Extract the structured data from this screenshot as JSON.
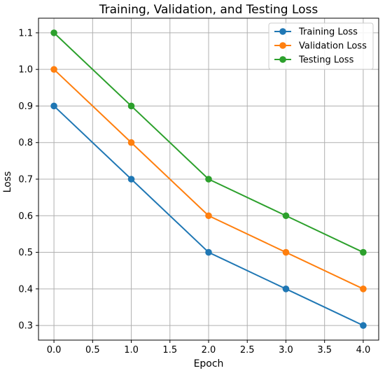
{
  "chart_data": {
    "type": "line",
    "title": "Training, Validation, and Testing Loss",
    "xlabel": "Epoch",
    "ylabel": "Loss",
    "x": [
      0,
      1,
      2,
      3,
      4
    ],
    "xlim": [
      -0.2,
      4.2
    ],
    "ylim": [
      0.26,
      1.14
    ],
    "xticks": [
      0.0,
      0.5,
      1.0,
      1.5,
      2.0,
      2.5,
      3.0,
      3.5,
      4.0
    ],
    "xtick_labels": [
      "0.0",
      "0.5",
      "1.0",
      "1.5",
      "2.0",
      "2.5",
      "3.0",
      "3.5",
      "4.0"
    ],
    "yticks": [
      0.3,
      0.4,
      0.5,
      0.6,
      0.7,
      0.8,
      0.9,
      1.0,
      1.1
    ],
    "ytick_labels": [
      "0.3",
      "0.4",
      "0.5",
      "0.6",
      "0.7",
      "0.8",
      "0.9",
      "1.0",
      "1.1"
    ],
    "grid": true,
    "legend_position": "top-right",
    "series": [
      {
        "name": "Training Loss",
        "values": [
          0.9,
          0.7,
          0.5,
          0.4,
          0.3
        ],
        "color": "#1f77b4",
        "marker": "circle"
      },
      {
        "name": "Validation Loss",
        "values": [
          1.0,
          0.8,
          0.6,
          0.5,
          0.4
        ],
        "color": "#ff7f0e",
        "marker": "circle"
      },
      {
        "name": "Testing Loss",
        "values": [
          1.1,
          0.9,
          0.7,
          0.6,
          0.5
        ],
        "color": "#2ca02c",
        "marker": "circle"
      }
    ]
  }
}
